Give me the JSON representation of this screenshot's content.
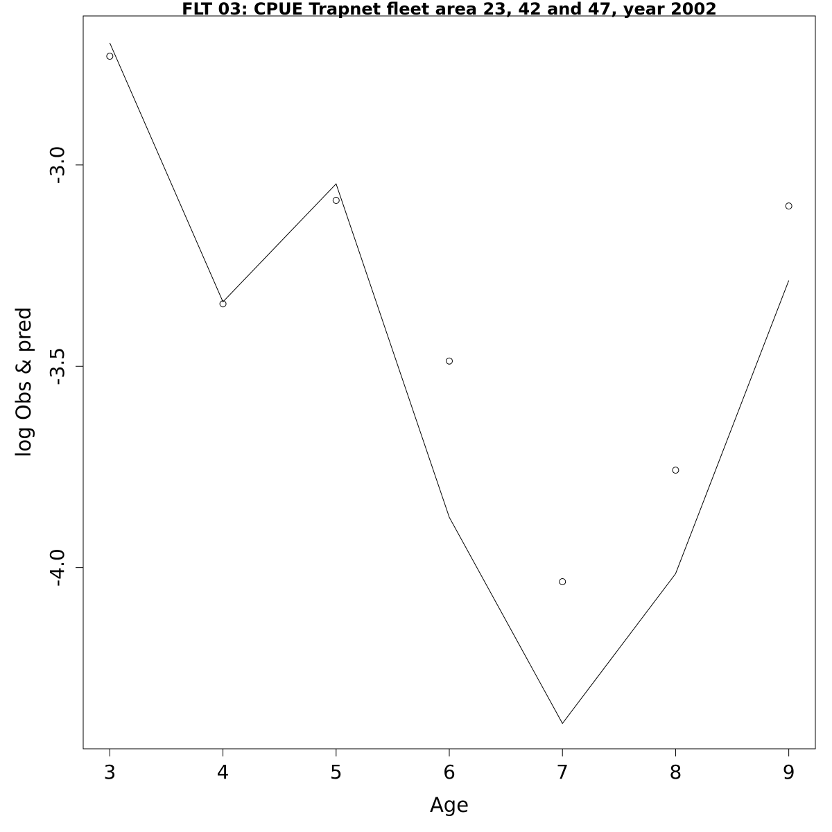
{
  "chart_data": {
    "type": "line",
    "title": "FLT 03: CPUE Trapnet fleet area 23, 42 and 47, year 2002",
    "xlabel": "Age",
    "ylabel": "log Obs & pred",
    "x": [
      3,
      4,
      5,
      6,
      7,
      8,
      9
    ],
    "xlim": [
      2.765,
      9.235
    ],
    "ylim": [
      -4.45,
      -2.63
    ],
    "xticks": [
      "3",
      "4",
      "5",
      "6",
      "7",
      "8",
      "9"
    ],
    "yticks": [
      "-3.0",
      "-3.5",
      "-4.0"
    ],
    "grid": false,
    "series": [
      {
        "style": "points",
        "values": [
          -2.73,
          -3.345,
          -3.088,
          -3.487,
          -4.035,
          -3.758,
          -3.102
        ]
      },
      {
        "style": "line",
        "values": [
          -2.697,
          -3.34,
          -3.047,
          -3.875,
          -4.387,
          -4.015,
          -3.287
        ]
      }
    ]
  }
}
